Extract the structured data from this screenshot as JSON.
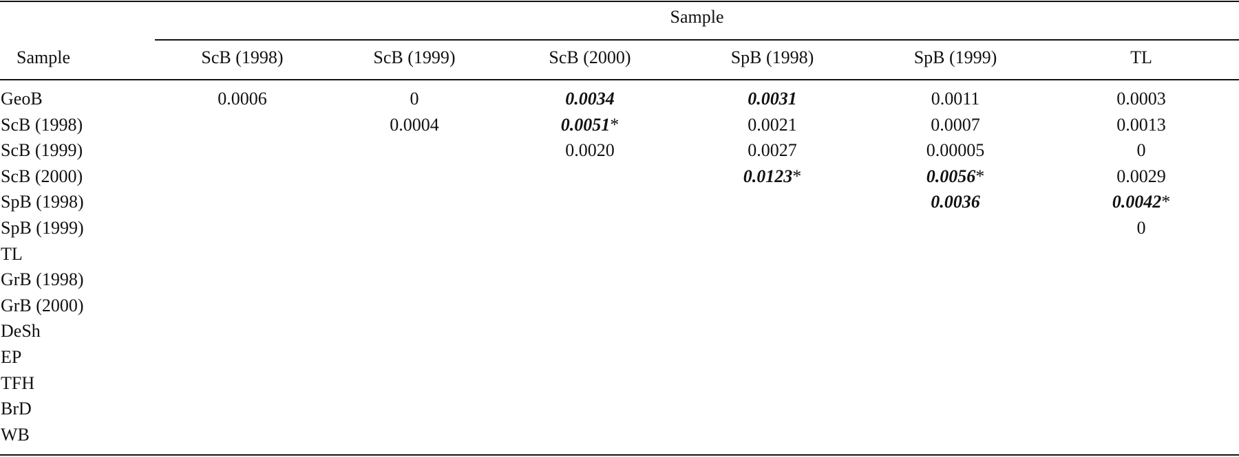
{
  "table": {
    "group_header": "Sample",
    "stub_header": "Sample",
    "columns": [
      "ScB (1998)",
      "ScB (1999)",
      "ScB (2000)",
      "SpB (1998)",
      "SpB (1999)",
      "TL"
    ],
    "rows": [
      {
        "label": "GeoB",
        "cells": [
          {
            "text": "0.0006",
            "sig": false,
            "star": ""
          },
          {
            "text": "0",
            "sig": false,
            "star": ""
          },
          {
            "text": "0.0034",
            "sig": true,
            "star": ""
          },
          {
            "text": "0.0031",
            "sig": true,
            "star": ""
          },
          {
            "text": "0.0011",
            "sig": false,
            "star": ""
          },
          {
            "text": "0.0003",
            "sig": false,
            "star": ""
          }
        ]
      },
      {
        "label": "ScB (1998)",
        "cells": [
          {
            "text": "",
            "sig": false,
            "star": ""
          },
          {
            "text": "0.0004",
            "sig": false,
            "star": ""
          },
          {
            "text": "0.0051",
            "sig": true,
            "star": "*"
          },
          {
            "text": "0.0021",
            "sig": false,
            "star": ""
          },
          {
            "text": "0.0007",
            "sig": false,
            "star": ""
          },
          {
            "text": "0.0013",
            "sig": false,
            "star": ""
          }
        ]
      },
      {
        "label": "ScB (1999)",
        "cells": [
          {
            "text": "",
            "sig": false,
            "star": ""
          },
          {
            "text": "",
            "sig": false,
            "star": ""
          },
          {
            "text": "0.0020",
            "sig": false,
            "star": ""
          },
          {
            "text": "0.0027",
            "sig": false,
            "star": ""
          },
          {
            "text": "0.00005",
            "sig": false,
            "star": ""
          },
          {
            "text": "0",
            "sig": false,
            "star": ""
          }
        ]
      },
      {
        "label": "ScB (2000)",
        "cells": [
          {
            "text": "",
            "sig": false,
            "star": ""
          },
          {
            "text": "",
            "sig": false,
            "star": ""
          },
          {
            "text": "",
            "sig": false,
            "star": ""
          },
          {
            "text": "0.0123",
            "sig": true,
            "star": "*"
          },
          {
            "text": "0.0056",
            "sig": true,
            "star": "*"
          },
          {
            "text": "0.0029",
            "sig": false,
            "star": ""
          }
        ]
      },
      {
        "label": "SpB (1998)",
        "cells": [
          {
            "text": "",
            "sig": false,
            "star": ""
          },
          {
            "text": "",
            "sig": false,
            "star": ""
          },
          {
            "text": "",
            "sig": false,
            "star": ""
          },
          {
            "text": "",
            "sig": false,
            "star": ""
          },
          {
            "text": "0.0036",
            "sig": true,
            "star": ""
          },
          {
            "text": "0.0042",
            "sig": true,
            "star": "*"
          }
        ]
      },
      {
        "label": "SpB (1999)",
        "cells": [
          {
            "text": "",
            "sig": false,
            "star": ""
          },
          {
            "text": "",
            "sig": false,
            "star": ""
          },
          {
            "text": "",
            "sig": false,
            "star": ""
          },
          {
            "text": "",
            "sig": false,
            "star": ""
          },
          {
            "text": "",
            "sig": false,
            "star": ""
          },
          {
            "text": "0",
            "sig": false,
            "star": ""
          }
        ]
      },
      {
        "label": "TL",
        "cells": []
      },
      {
        "label": "GrB (1998)",
        "cells": []
      },
      {
        "label": "GrB (2000)",
        "cells": []
      },
      {
        "label": "DeSh",
        "cells": []
      },
      {
        "label": "EP",
        "cells": []
      },
      {
        "label": "TFH",
        "cells": []
      },
      {
        "label": "BrD",
        "cells": []
      },
      {
        "label": "WB",
        "cells": []
      }
    ]
  }
}
